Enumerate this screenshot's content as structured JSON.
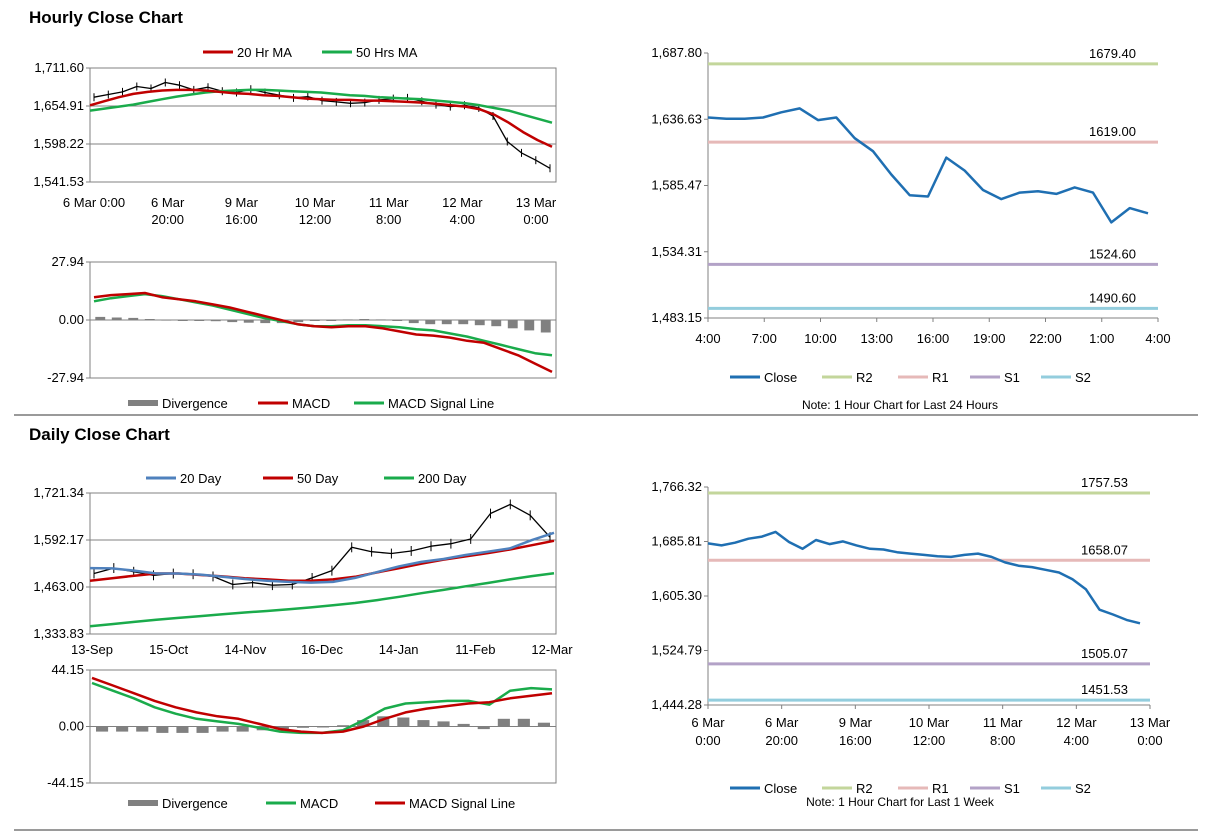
{
  "colors": {
    "close": "#1f6fb2",
    "r2": "#c3d69b",
    "r1": "#e6b9b8",
    "s1": "#b3a2c7",
    "s2": "#93cddd",
    "red": "#c00000",
    "green": "#1aab4b",
    "blue": "#4f81bd",
    "gray": "#808080",
    "axis": "#808080"
  },
  "sections": {
    "hourly_title": "Hourly Close Chart",
    "daily_title": "Daily Close Chart"
  },
  "chart_data": [
    {
      "id": "hourly_price",
      "type": "line",
      "title": "",
      "legend": [
        "20 Hr MA",
        "50 Hrs MA"
      ],
      "yticks": [
        "1,711.60",
        "1,654.91",
        "1,598.22",
        "1,541.53"
      ],
      "ylim": [
        1541.53,
        1711.6
      ],
      "xticks": [
        [
          "6 Mar 0:00",
          ""
        ],
        [
          "6 Mar",
          "20:00"
        ],
        [
          "9 Mar",
          "16:00"
        ],
        [
          "10 Mar",
          "12:00"
        ],
        [
          "11 Mar",
          "8:00"
        ],
        [
          "12 Mar",
          "4:00"
        ],
        [
          "13 Mar",
          "0:00"
        ]
      ],
      "ma20": [
        1656,
        1662,
        1668,
        1673,
        1676,
        1678,
        1679,
        1679,
        1678,
        1676,
        1674,
        1673,
        1671,
        1670,
        1668,
        1666,
        1665,
        1664,
        1664,
        1663,
        1663,
        1662,
        1661,
        1660,
        1658,
        1656,
        1654,
        1650,
        1642,
        1630,
        1616,
        1604,
        1594
      ],
      "ma50": [
        1648,
        1651,
        1654,
        1657,
        1661,
        1665,
        1669,
        1672,
        1675,
        1677,
        1678,
        1679,
        1679,
        1678,
        1677,
        1676,
        1675,
        1673,
        1671,
        1670,
        1668,
        1667,
        1666,
        1665,
        1663,
        1661,
        1659,
        1656,
        1652,
        1648,
        1642,
        1636,
        1630
      ],
      "close": [
        1668,
        1672,
        1676,
        1684,
        1681,
        1690,
        1686,
        1679,
        1683,
        1677,
        1675,
        1680,
        1675,
        1671,
        1667,
        1669,
        1663,
        1661,
        1659,
        1660,
        1664,
        1666,
        1667,
        1662,
        1657,
        1654,
        1656,
        1652,
        1640,
        1602,
        1585,
        1574,
        1562
      ]
    },
    {
      "id": "hourly_macd",
      "type": "line",
      "yticks": [
        "27.94",
        "0.00",
        "-27.94"
      ],
      "ylim": [
        -27.94,
        27.94
      ],
      "legend": [
        "Divergence",
        "MACD",
        "MACD Signal Line"
      ],
      "macd": [
        11,
        12,
        12.5,
        13,
        11,
        10,
        9,
        7.5,
        6,
        4,
        2,
        0,
        -2,
        -3,
        -3.5,
        -3,
        -3,
        -4,
        -5.5,
        -7,
        -7.5,
        -8.5,
        -10,
        -11,
        -14,
        -17,
        -21,
        -25
      ],
      "signal": [
        9,
        10.5,
        11.5,
        12.5,
        11.5,
        10,
        8.5,
        7,
        5,
        3,
        1,
        -0.5,
        -2,
        -3,
        -3,
        -2.5,
        -2.5,
        -3,
        -3.5,
        -4.5,
        -5,
        -6.5,
        -8,
        -10,
        -12,
        -14,
        -16,
        -17
      ],
      "divergence": [
        1.5,
        1.2,
        1,
        0.5,
        0.2,
        0,
        -0.3,
        -0.6,
        -1,
        -1.3,
        -1.5,
        -1.5,
        -1,
        -0.5,
        0,
        0.3,
        0.5,
        0.3,
        -0.5,
        -1.5,
        -2,
        -2,
        -2,
        -2.5,
        -3,
        -4,
        -5,
        -6
      ]
    },
    {
      "id": "hourly_pivot",
      "type": "line",
      "ylim": [
        1483.15,
        1687.8
      ],
      "yticks": [
        "1,687.80",
        "1,636.63",
        "1,585.47",
        "1,534.31",
        "1,483.15"
      ],
      "xticks": [
        "4:00",
        "7:00",
        "10:00",
        "13:00",
        "16:00",
        "19:00",
        "22:00",
        "1:00",
        "4:00"
      ],
      "close": [
        1638,
        1637,
        1637,
        1638,
        1642,
        1645,
        1636,
        1638,
        1622,
        1612,
        1594,
        1578,
        1577,
        1607,
        1597,
        1582,
        1575,
        1580,
        1581,
        1579,
        1584,
        1580,
        1557,
        1568,
        1564
      ],
      "levels": [
        {
          "name": "R2",
          "value": 1679.4,
          "label": "1679.40"
        },
        {
          "name": "R1",
          "value": 1619.0,
          "label": "1619.00"
        },
        {
          "name": "S1",
          "value": 1524.6,
          "label": "1524.60"
        },
        {
          "name": "S2",
          "value": 1490.6,
          "label": "1490.60"
        }
      ],
      "legend": [
        "Close",
        "R2",
        "R1",
        "S1",
        "S2"
      ],
      "note": "Note: 1 Hour Chart for Last 24 Hours"
    },
    {
      "id": "daily_price",
      "type": "line",
      "yticks": [
        "1,721.34",
        "1,592.17",
        "1,463.00",
        "1,333.83"
      ],
      "ylim": [
        1333.83,
        1721.34
      ],
      "xticks": [
        "13-Sep",
        "15-Oct",
        "14-Nov",
        "16-Dec",
        "14-Jan",
        "11-Feb",
        "12-Mar"
      ],
      "legend": [
        "20 Day",
        "50 Day",
        "200 Day"
      ],
      "ma20": [
        1515,
        1514,
        1508,
        1500,
        1500,
        1497,
        1491,
        1485,
        1480,
        1477,
        1475,
        1477,
        1488,
        1504,
        1520,
        1532,
        1540,
        1551,
        1560,
        1569,
        1592,
        1612
      ],
      "ma50": [
        1480,
        1487,
        1494,
        1500,
        1500,
        1496,
        1492,
        1487,
        1484,
        1480,
        1480,
        1484,
        1491,
        1503,
        1515,
        1527,
        1538,
        1547,
        1556,
        1566,
        1578,
        1590
      ],
      "ma200": [
        1355,
        1361,
        1367,
        1373,
        1378,
        1383,
        1388,
        1393,
        1397,
        1402,
        1407,
        1413,
        1419,
        1427,
        1436,
        1446,
        1455,
        1465,
        1474,
        1484,
        1493,
        1501
      ],
      "close": [
        1500,
        1515,
        1505,
        1495,
        1500,
        1498,
        1492,
        1470,
        1475,
        1468,
        1470,
        1488,
        1508,
        1572,
        1560,
        1555,
        1562,
        1575,
        1582,
        1595,
        1665,
        1690,
        1660,
        1600
      ]
    },
    {
      "id": "daily_macd",
      "type": "line",
      "yticks": [
        "44.15",
        "0.00",
        "-44.15"
      ],
      "ylim": [
        -44.15,
        44.15
      ],
      "legend": [
        "Divergence",
        "MACD",
        "MACD Signal Line"
      ],
      "macd": [
        34,
        28,
        22,
        15,
        10,
        6,
        4,
        2,
        -1,
        -4,
        -5,
        -5,
        -3,
        5,
        14,
        18,
        19,
        20,
        20,
        17,
        28,
        30,
        29
      ],
      "signal": [
        38,
        32,
        26,
        20,
        15,
        11,
        8,
        6,
        2,
        -2,
        -4,
        -5,
        -4,
        0,
        6,
        11,
        14,
        16,
        18,
        19,
        22,
        24,
        26
      ],
      "divergence": [
        -4,
        -4,
        -4,
        -5,
        -5,
        -5,
        -4,
        -4,
        -3,
        -2,
        -1,
        0,
        1,
        5,
        8,
        7,
        5,
        4,
        2,
        -2,
        6,
        6,
        3
      ]
    },
    {
      "id": "daily_pivot",
      "type": "line",
      "ylim": [
        1444.28,
        1766.32
      ],
      "yticks": [
        "1,766.32",
        "1,685.81",
        "1,605.30",
        "1,524.79",
        "1,444.28"
      ],
      "xticks": [
        [
          "6 Mar",
          "0:00"
        ],
        [
          "6 Mar",
          "20:00"
        ],
        [
          "9 Mar",
          "16:00"
        ],
        [
          "10 Mar",
          "12:00"
        ],
        [
          "11 Mar",
          "8:00"
        ],
        [
          "12 Mar",
          "4:00"
        ],
        [
          "13 Mar",
          "0:00"
        ]
      ],
      "close": [
        1683,
        1680,
        1684,
        1690,
        1693,
        1700,
        1685,
        1675,
        1688,
        1682,
        1686,
        1680,
        1675,
        1674,
        1670,
        1668,
        1666,
        1664,
        1663,
        1666,
        1668,
        1663,
        1655,
        1650,
        1648,
        1644,
        1640,
        1630,
        1615,
        1585,
        1578,
        1570,
        1565
      ],
      "levels": [
        {
          "name": "R2",
          "value": 1757.53,
          "label": "1757.53"
        },
        {
          "name": "R1",
          "value": 1658.07,
          "label": "1658.07"
        },
        {
          "name": "S1",
          "value": 1505.07,
          "label": "1505.07"
        },
        {
          "name": "S2",
          "value": 1451.53,
          "label": "1451.53"
        }
      ],
      "legend": [
        "Close",
        "R2",
        "R1",
        "S1",
        "S2"
      ],
      "note": "Note: 1 Hour Chart for Last 1 Week"
    }
  ]
}
